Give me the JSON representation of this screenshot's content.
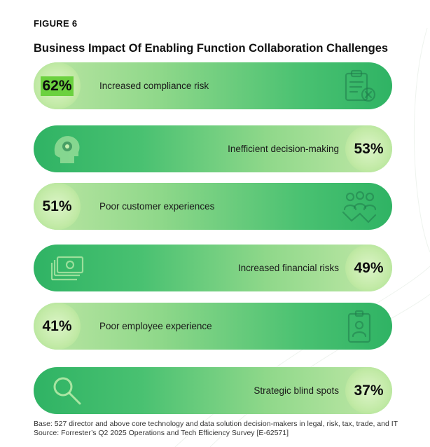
{
  "figure_label": "FIGURE 6",
  "chart_data": {
    "type": "bar",
    "title": "Business Impact Of Enabling Function Collaboration Challenges",
    "categories": [
      "Increased compliance risk",
      "Inefficient decision-making",
      "Poor customer experiences",
      "Increased financial risks",
      "Poor employee experience",
      "Strategic blind spots"
    ],
    "values": [
      62,
      53,
      51,
      49,
      41,
      37
    ],
    "value_labels": [
      "62%",
      "53%",
      "51%",
      "49%",
      "41%",
      "37%"
    ],
    "unit": "%",
    "icons": [
      "clipboard-x-icon",
      "head-gear-icon",
      "customer-group-icon",
      "money-bills-icon",
      "id-badge-icon",
      "magnifier-icon"
    ],
    "colors": {
      "bar_dark": "#2fb364",
      "bar_light": "#bde6a4",
      "circle": "#c2eaa6",
      "highlight": "#6bd13f"
    }
  },
  "footnote": {
    "base": "Base: 527 director and above core technology and data solution decision-makers in legal, risk, tax, trade, and IT",
    "source": "Source: Forrester’s Q2 2025 Operations and Tech Efficiency Survey [E-62571]"
  }
}
